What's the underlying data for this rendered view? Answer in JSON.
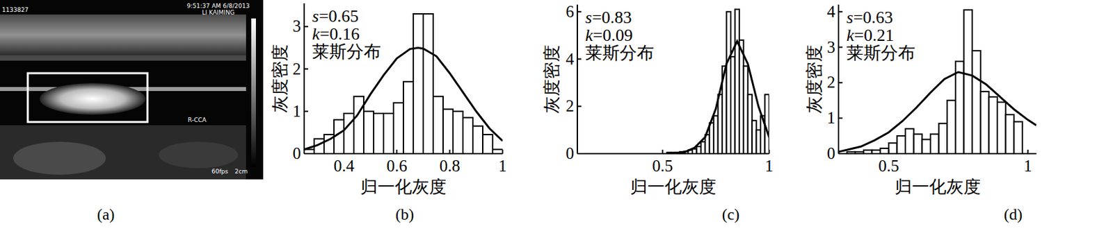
{
  "panel_a": {
    "texts": [
      "1133827",
      "9:51:37 AM 6/8/2013",
      "LI KAIMING",
      "R-CCA",
      "60fps",
      "2cm"
    ]
  },
  "panel_labels": [
    "(a)",
    "(b)",
    "(c)",
    "(d)"
  ],
  "chart_data": [
    {
      "type": "histogram",
      "x_label": "归一化灰度",
      "y_label": "灰度密度",
      "annotations": [
        "s=0.65",
        "k=0.16",
        "莱斯分布"
      ],
      "xlim": [
        0.25,
        1.0
      ],
      "xticks": [
        0.4,
        0.6,
        0.8,
        1
      ],
      "ylim": [
        0,
        3.55
      ],
      "yticks": [
        0,
        1,
        2,
        3
      ],
      "bins": [
        0.25,
        0.2875,
        0.325,
        0.3625,
        0.4,
        0.4375,
        0.475,
        0.5125,
        0.55,
        0.5875,
        0.625,
        0.6625,
        0.7,
        0.7375,
        0.775,
        0.8125,
        0.85,
        0.8875,
        0.925,
        0.9625,
        1.0
      ],
      "counts": [
        0.1,
        0.35,
        0.45,
        0.8,
        0.95,
        1.35,
        1.0,
        0.95,
        0.95,
        1.2,
        1.7,
        3.3,
        3.3,
        1.35,
        1.05,
        1.0,
        0.85,
        0.65,
        0.45,
        0.1
      ],
      "fit_curve": {
        "color": "#000000",
        "x": [
          0.25,
          0.3,
          0.35,
          0.4,
          0.45,
          0.5,
          0.55,
          0.6,
          0.65,
          0.68,
          0.7,
          0.75,
          0.8,
          0.85,
          0.9,
          0.95,
          1.0
        ],
        "values": [
          0.1,
          0.2,
          0.35,
          0.55,
          0.9,
          1.4,
          1.85,
          2.25,
          2.47,
          2.5,
          2.48,
          2.3,
          1.9,
          1.45,
          1.0,
          0.6,
          0.3
        ]
      }
    },
    {
      "type": "histogram",
      "x_label": "归一化灰度",
      "y_label": "灰度密度",
      "annotations": [
        "s=0.83",
        "k=0.09",
        "莱斯分布"
      ],
      "xlim": [
        0.1,
        1.0
      ],
      "xticks": [
        0.5,
        1
      ],
      "ylim": [
        0,
        6.3
      ],
      "yticks": [
        0,
        2,
        4,
        6
      ],
      "bins": [
        0.52,
        0.54,
        0.56,
        0.58,
        0.6,
        0.62,
        0.64,
        0.66,
        0.68,
        0.7,
        0.72,
        0.74,
        0.76,
        0.78,
        0.8,
        0.82,
        0.84,
        0.86,
        0.88,
        0.9,
        0.92,
        0.94,
        0.96,
        0.98,
        1.0
      ],
      "counts": [
        0.05,
        0.05,
        0.05,
        0.08,
        0.1,
        0.15,
        0.2,
        0.3,
        0.5,
        0.8,
        1.3,
        1.6,
        2.5,
        3.7,
        6.0,
        4.1,
        6.1,
        4.8,
        3.7,
        2.5,
        1.4,
        1.0,
        1.6,
        2.5
      ],
      "fit_curve": {
        "color": "#000000",
        "x": [
          0.55,
          0.6,
          0.65,
          0.7,
          0.75,
          0.8,
          0.85,
          0.9,
          0.95,
          1.0
        ],
        "values": [
          0.02,
          0.05,
          0.25,
          0.7,
          1.9,
          3.8,
          4.75,
          3.8,
          2.0,
          0.7
        ]
      }
    },
    {
      "type": "histogram",
      "x_label": "归一化灰度",
      "y_label": "灰度密度",
      "annotations": [
        "s=0.63",
        "k=0.21",
        "莱斯分布"
      ],
      "xlim": [
        0.32,
        1.03
      ],
      "xticks": [
        0.5,
        1
      ],
      "ylim": [
        0,
        4.2
      ],
      "yticks": [
        0,
        1,
        2,
        3,
        4
      ],
      "bins": [
        0.35,
        0.38,
        0.41,
        0.44,
        0.47,
        0.5,
        0.53,
        0.56,
        0.59,
        0.62,
        0.65,
        0.68,
        0.71,
        0.74,
        0.77,
        0.8,
        0.83,
        0.86,
        0.89,
        0.92,
        0.95,
        0.98
      ],
      "counts": [
        0.05,
        0.05,
        0.1,
        0.1,
        0.15,
        0.3,
        0.5,
        0.7,
        0.55,
        0.4,
        0.55,
        0.85,
        1.5,
        2.6,
        4.05,
        2.9,
        1.75,
        1.6,
        1.45,
        1.1,
        0.9
      ],
      "fit_curve": {
        "color": "#000000",
        "x": [
          0.32,
          0.4,
          0.45,
          0.5,
          0.55,
          0.6,
          0.65,
          0.7,
          0.75,
          0.8,
          0.85,
          0.9,
          0.95,
          1.0,
          1.03
        ],
        "values": [
          0.05,
          0.2,
          0.38,
          0.6,
          0.92,
          1.3,
          1.72,
          2.1,
          2.3,
          2.2,
          1.95,
          1.6,
          1.25,
          0.95,
          0.8
        ]
      }
    }
  ]
}
